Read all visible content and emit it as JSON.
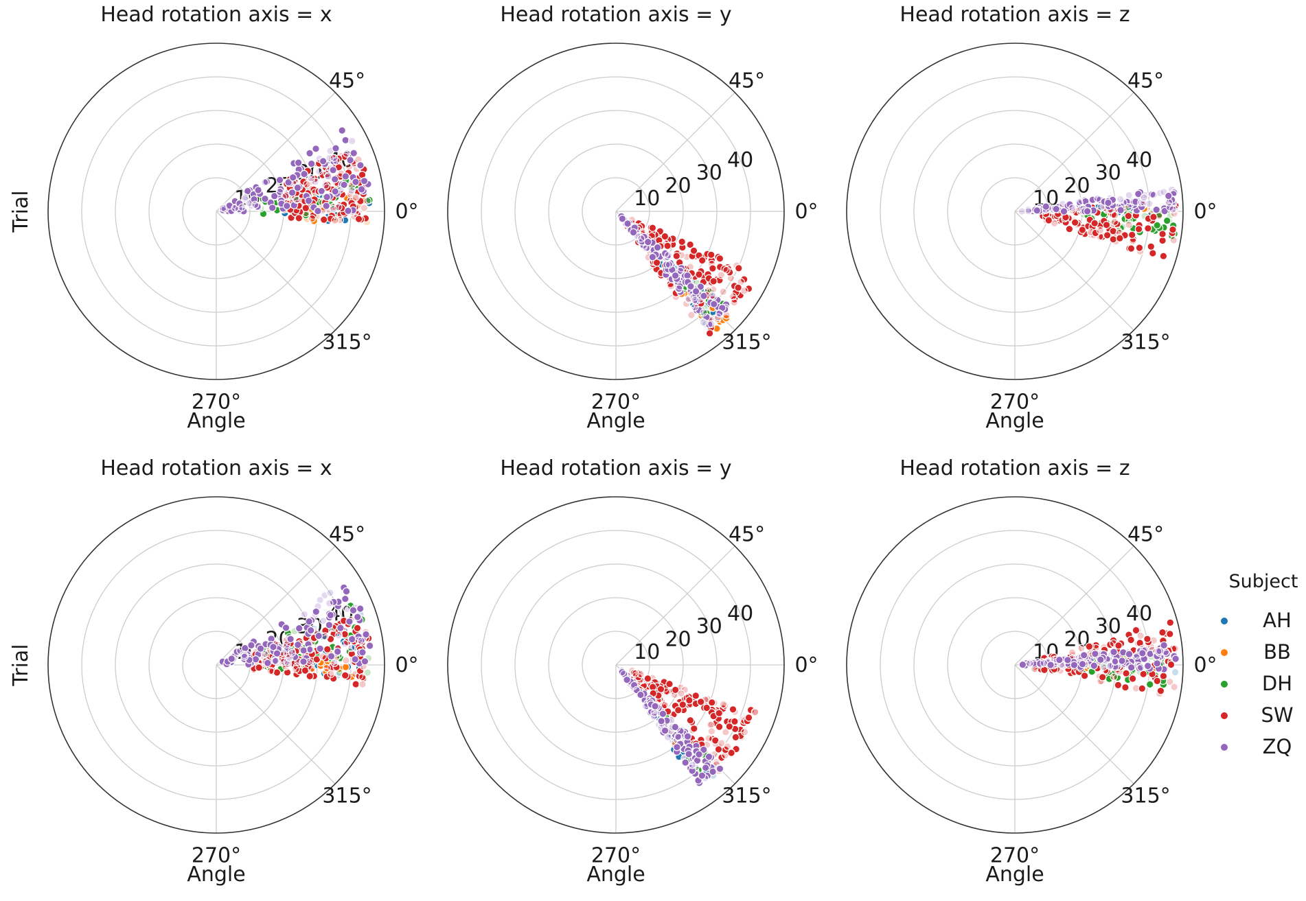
{
  "chart_data": {
    "type": "scatter",
    "projection": "polar",
    "description_source": "visible",
    "theta_ticks_deg": [
      0,
      45,
      270,
      315
    ],
    "theta_tick_labels": [
      "0°",
      "45°",
      "270°",
      "315°"
    ],
    "r_ticks": [
      10,
      20,
      30,
      40
    ],
    "r_tick_labels": [
      "10",
      "20",
      "30",
      "40"
    ],
    "rlim": [
      0,
      50
    ],
    "xlabel": "Angle",
    "ylabel": "Trial",
    "legend": {
      "title": "Subject",
      "placement": "right",
      "entries": [
        {
          "name": "AH",
          "color": "#1f77b4"
        },
        {
          "name": "BB",
          "color": "#ff7f0e"
        },
        {
          "name": "DH",
          "color": "#2ca02c"
        },
        {
          "name": "SW",
          "color": "#d62728"
        },
        {
          "name": "ZQ",
          "color": "#9467bd"
        }
      ]
    },
    "panels": [
      {
        "title": "Head rotation axis = x",
        "row": 0,
        "col": 0,
        "series": [
          {
            "name": "AH",
            "angle_range_deg": [
              -5,
              8
            ],
            "r_range": [
              18,
              46
            ],
            "count": 24
          },
          {
            "name": "BB",
            "angle_range_deg": [
              -6,
              6
            ],
            "r_range": [
              25,
              45
            ],
            "count": 22
          },
          {
            "name": "DH",
            "angle_range_deg": [
              -3,
              15
            ],
            "r_range": [
              12,
              46
            ],
            "count": 40
          },
          {
            "name": "SW",
            "angle_range_deg": [
              -5,
              25
            ],
            "r_range": [
              20,
              46
            ],
            "count": 150
          },
          {
            "name": "ZQ",
            "angle_range_deg": [
              0,
              33
            ],
            "r_range": [
              2,
              46
            ],
            "count": 130
          }
        ]
      },
      {
        "title": "Head rotation axis = y",
        "row": 0,
        "col": 1,
        "series": [
          {
            "name": "AH",
            "angle_range_deg": [
              -52,
              -42
            ],
            "r_range": [
              20,
              44
            ],
            "count": 22
          },
          {
            "name": "BB",
            "angle_range_deg": [
              -52,
              -44
            ],
            "r_range": [
              22,
              46
            ],
            "count": 22
          },
          {
            "name": "DH",
            "angle_range_deg": [
              -50,
              -40
            ],
            "r_range": [
              25,
              42
            ],
            "count": 22
          },
          {
            "name": "SW",
            "angle_range_deg": [
              -55,
              -24
            ],
            "r_range": [
              5,
              46
            ],
            "count": 170
          },
          {
            "name": "ZQ",
            "angle_range_deg": [
              -52,
              -40
            ],
            "r_range": [
              2,
              44
            ],
            "count": 130
          }
        ]
      },
      {
        "title": "Head rotation axis = z",
        "row": 0,
        "col": 2,
        "series": [
          {
            "name": "AH",
            "angle_range_deg": [
              -3,
              3
            ],
            "r_range": [
              18,
              46
            ],
            "count": 14
          },
          {
            "name": "BB",
            "angle_range_deg": [
              -3,
              3
            ],
            "r_range": [
              18,
              46
            ],
            "count": 14
          },
          {
            "name": "DH",
            "angle_range_deg": [
              -10,
              2
            ],
            "r_range": [
              20,
              48
            ],
            "count": 40
          },
          {
            "name": "SW",
            "angle_range_deg": [
              -18,
              3
            ],
            "r_range": [
              8,
              48
            ],
            "count": 120
          },
          {
            "name": "ZQ",
            "angle_range_deg": [
              0,
              9
            ],
            "r_range": [
              2,
              48
            ],
            "count": 130
          }
        ]
      },
      {
        "title": "Head rotation axis = x",
        "row": 1,
        "col": 0,
        "series": [
          {
            "name": "AH",
            "angle_range_deg": [
              -5,
              22
            ],
            "r_range": [
              25,
              46
            ],
            "count": 26
          },
          {
            "name": "BB",
            "angle_range_deg": [
              -5,
              6
            ],
            "r_range": [
              25,
              45
            ],
            "count": 18
          },
          {
            "name": "DH",
            "angle_range_deg": [
              -4,
              24
            ],
            "r_range": [
              12,
              46
            ],
            "count": 45
          },
          {
            "name": "SW",
            "angle_range_deg": [
              -8,
              20
            ],
            "r_range": [
              10,
              46
            ],
            "count": 150
          },
          {
            "name": "ZQ",
            "angle_range_deg": [
              0,
              33
            ],
            "r_range": [
              2,
              46
            ],
            "count": 130
          }
        ]
      },
      {
        "title": "Head rotation axis = y",
        "row": 1,
        "col": 1,
        "series": [
          {
            "name": "AH",
            "angle_range_deg": [
              -56,
              -46
            ],
            "r_range": [
              20,
              44
            ],
            "count": 18
          },
          {
            "name": "BB",
            "angle_range_deg": [
              -54,
              -44
            ],
            "r_range": [
              20,
              44
            ],
            "count": 14
          },
          {
            "name": "DH",
            "angle_range_deg": [
              -52,
              -44
            ],
            "r_range": [
              20,
              40
            ],
            "count": 16
          },
          {
            "name": "SW",
            "angle_range_deg": [
              -48,
              -18
            ],
            "r_range": [
              5,
              44
            ],
            "count": 170
          },
          {
            "name": "ZQ",
            "angle_range_deg": [
              -55,
              -44
            ],
            "r_range": [
              2,
              44
            ],
            "count": 130
          }
        ]
      },
      {
        "title": "Head rotation axis = z",
        "row": 1,
        "col": 2,
        "series": [
          {
            "name": "AH",
            "angle_range_deg": [
              -4,
              6
            ],
            "r_range": [
              20,
              48
            ],
            "count": 16
          },
          {
            "name": "BB",
            "angle_range_deg": [
              -3,
              8
            ],
            "r_range": [
              20,
              48
            ],
            "count": 16
          },
          {
            "name": "DH",
            "angle_range_deg": [
              -10,
              4
            ],
            "r_range": [
              20,
              46
            ],
            "count": 40
          },
          {
            "name": "SW",
            "angle_range_deg": [
              -12,
              16
            ],
            "r_range": [
              5,
              48
            ],
            "count": 130
          },
          {
            "name": "ZQ",
            "angle_range_deg": [
              -2,
              8
            ],
            "r_range": [
              2,
              48
            ],
            "count": 130
          }
        ]
      }
    ]
  }
}
